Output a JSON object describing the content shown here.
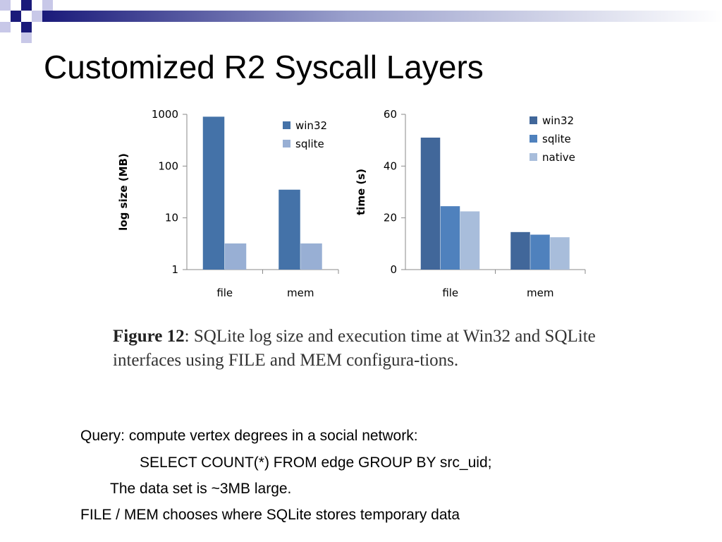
{
  "slide": {
    "title": "Customized R2 Syscall Layers",
    "caption_bold": "Figure 12",
    "caption_text": ": SQLite log size and execution time at Win32 and SQLite interfaces using FILE and MEM configura-tions.",
    "lines": {
      "query": "Query: compute vertex degrees in a social network:",
      "sql": "SELECT COUNT(*) FROM edge GROUP BY src_uid;",
      "dataset": "The data set is ~3MB large.",
      "filemem": "FILE / MEM chooses where SQLite stores temporary data"
    },
    "colors": {
      "deco_dark": "#1a1a7a",
      "deco_light": "#c8c8e8"
    }
  },
  "chart_data": [
    {
      "type": "bar",
      "title": "",
      "xlabel": "",
      "ylabel": "log size (MB)",
      "yscale": "log",
      "ylim": [
        1,
        1000
      ],
      "yticks": [
        "1",
        "10",
        "100",
        "1000"
      ],
      "categories": [
        "file",
        "mem"
      ],
      "series": [
        {
          "name": "win32",
          "values": [
            900,
            35
          ],
          "color": "#4472a8"
        },
        {
          "name": "sqlite",
          "values": [
            3.2,
            3.2
          ],
          "color": "#98afd4"
        }
      ],
      "legend": "top-right",
      "grid": false
    },
    {
      "type": "bar",
      "title": "",
      "xlabel": "",
      "ylabel": "time (s)",
      "yscale": "linear",
      "ylim": [
        0,
        60
      ],
      "yticks": [
        "0",
        "20",
        "40",
        "60"
      ],
      "categories": [
        "file",
        "mem"
      ],
      "series": [
        {
          "name": "win32",
          "values": [
            51,
            14.5
          ],
          "color": "#41679a"
        },
        {
          "name": "sqlite",
          "values": [
            24.5,
            13.5
          ],
          "color": "#4f81bd"
        },
        {
          "name": "native",
          "values": [
            22.5,
            12.5
          ],
          "color": "#a8bddb"
        }
      ],
      "legend": "top-right",
      "grid": false
    }
  ]
}
